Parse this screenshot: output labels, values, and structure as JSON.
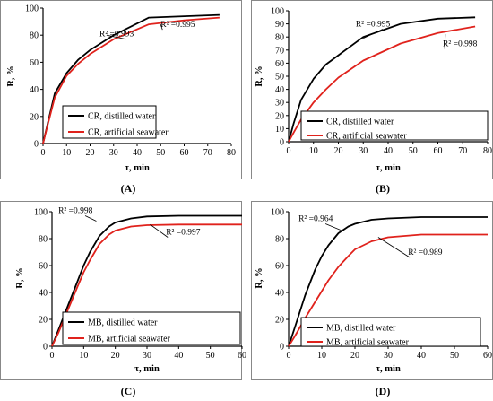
{
  "colors": {
    "distilled": "#000000",
    "seawater": "#e0221c",
    "axis": "#000000",
    "frame": "#888888"
  },
  "chart_data": [
    {
      "panel": "(A)",
      "type": "line",
      "xlabel": "τ, min",
      "ylabel": "R, %",
      "xlim": [
        0,
        80
      ],
      "ylim": [
        0,
        100
      ],
      "xticks": [
        "0",
        "10",
        "20",
        "30",
        "40",
        "50",
        "60",
        "70",
        "80"
      ],
      "yticks": [
        "0",
        "20",
        "40",
        "60",
        "80",
        "100"
      ],
      "legend_position": "bottom-right",
      "series": [
        {
          "name": "CR, distilled water",
          "color_key": "distilled",
          "x": [
            0,
            2,
            5,
            10,
            15,
            20,
            30,
            45,
            60,
            75
          ],
          "y": [
            0,
            15,
            37,
            52,
            62,
            69,
            80,
            93,
            94,
            95
          ]
        },
        {
          "name": "CR, artificial seawater",
          "color_key": "seawater",
          "x": [
            0,
            2,
            5,
            10,
            15,
            20,
            30,
            45,
            60,
            75
          ],
          "y": [
            0,
            14,
            34,
            50,
            59,
            66,
            77,
            88,
            91,
            93
          ]
        }
      ],
      "annotations": [
        {
          "text": "R² =0.993",
          "x": 24,
          "y": 79
        },
        {
          "text": "R² =0.995",
          "x": 50,
          "y": 86
        }
      ]
    },
    {
      "panel": "(B)",
      "type": "line",
      "xlabel": "τ, min",
      "ylabel": "R, %",
      "xlim": [
        0,
        80
      ],
      "ylim": [
        0,
        100
      ],
      "xticks": [
        "0",
        "10",
        "20",
        "30",
        "40",
        "50",
        "60",
        "70",
        "80"
      ],
      "yticks": [
        "0",
        "10",
        "20",
        "30",
        "40",
        "50",
        "60",
        "70",
        "80",
        "90",
        "100"
      ],
      "legend_position": "bottom-right",
      "series": [
        {
          "name": "CR, distilled water",
          "color_key": "distilled",
          "x": [
            0,
            2,
            5,
            10,
            15,
            20,
            30,
            45,
            60,
            75
          ],
          "y": [
            0,
            14,
            32,
            48,
            59,
            66,
            80,
            90,
            94,
            95
          ]
        },
        {
          "name": "CR, artificial seawater",
          "color_key": "seawater",
          "x": [
            0,
            2,
            5,
            10,
            15,
            20,
            30,
            45,
            60,
            75
          ],
          "y": [
            0,
            7,
            17,
            30,
            40,
            49,
            62,
            75,
            83,
            88
          ]
        }
      ],
      "annotations": [
        {
          "text": "R² =0.995",
          "x": 27,
          "y": 88
        },
        {
          "text": "R² =0.998",
          "x": 62,
          "y": 73
        }
      ]
    },
    {
      "panel": "(C)",
      "type": "line",
      "xlabel": "τ, min",
      "ylabel": "R, %",
      "xlim": [
        0,
        60
      ],
      "ylim": [
        0,
        100
      ],
      "xticks": [
        "0",
        "10",
        "20",
        "30",
        "40",
        "50",
        "60"
      ],
      "yticks": [
        "0",
        "20",
        "40",
        "60",
        "80",
        "100"
      ],
      "legend_position": "bottom-right",
      "series": [
        {
          "name": "MB, distilled water",
          "color_key": "distilled",
          "x": [
            0,
            2,
            5,
            8,
            10,
            12,
            15,
            18,
            20,
            25,
            30,
            40,
            60
          ],
          "y": [
            0,
            12,
            30,
            48,
            60,
            70,
            82,
            89,
            92,
            95,
            96.5,
            97,
            97
          ]
        },
        {
          "name": "MB, artificial seawater",
          "color_key": "seawater",
          "x": [
            0,
            2,
            5,
            8,
            10,
            12,
            15,
            18,
            20,
            25,
            30,
            40,
            60
          ],
          "y": [
            0,
            10,
            27,
            44,
            55,
            64,
            76,
            83,
            86,
            89,
            90,
            90.5,
            90.5
          ]
        }
      ],
      "annotations": [
        {
          "text": "R² =0.998",
          "x": 2,
          "y": 99
        },
        {
          "text": "R² =0.997",
          "x": 36,
          "y": 83
        }
      ]
    },
    {
      "panel": "(D)",
      "type": "line",
      "xlabel": "τ, min",
      "ylabel": "R, %",
      "xlim": [
        0,
        60
      ],
      "ylim": [
        0,
        100
      ],
      "xticks": [
        "0",
        "10",
        "20",
        "30",
        "40",
        "50",
        "60"
      ],
      "yticks": [
        "0",
        "20",
        "40",
        "60",
        "80",
        "100"
      ],
      "legend_position": "bottom-right",
      "series": [
        {
          "name": "MB, distilled water",
          "color_key": "distilled",
          "x": [
            0,
            2,
            5,
            8,
            10,
            12,
            15,
            18,
            20,
            25,
            30,
            40,
            60
          ],
          "y": [
            0,
            15,
            38,
            57,
            67,
            75,
            84,
            89,
            91,
            94,
            95,
            96,
            96
          ]
        },
        {
          "name": "MB, artificial seawater",
          "color_key": "seawater",
          "x": [
            0,
            2,
            5,
            8,
            10,
            12,
            15,
            18,
            20,
            25,
            30,
            40,
            60
          ],
          "y": [
            0,
            8,
            21,
            33,
            41,
            49,
            59,
            67,
            72,
            78,
            81,
            83,
            83
          ]
        }
      ],
      "annotations": [
        {
          "text": "R² =0.964",
          "x": 3,
          "y": 93
        },
        {
          "text": "R² =0.989",
          "x": 36,
          "y": 68
        }
      ]
    }
  ]
}
